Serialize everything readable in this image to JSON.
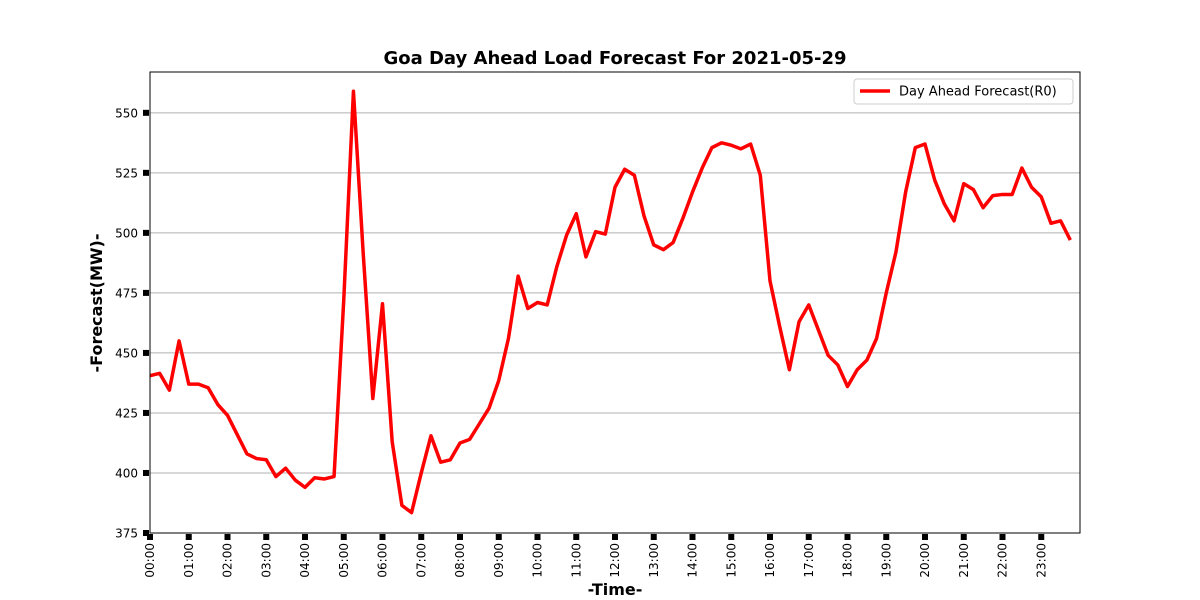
{
  "chart_data": {
    "type": "line",
    "title": "Goa Day Ahead Load Forecast For 2021-05-29",
    "xlabel": "-Time-",
    "ylabel": "-Forecast(MW)-",
    "ylim": [
      375,
      567
    ],
    "yticks": [
      375,
      400,
      425,
      450,
      475,
      500,
      525,
      550
    ],
    "xtick_labels": [
      "00:00",
      "01:00",
      "02:00",
      "03:00",
      "04:00",
      "05:00",
      "06:00",
      "07:00",
      "08:00",
      "09:00",
      "10:00",
      "11:00",
      "12:00",
      "13:00",
      "14:00",
      "15:00",
      "16:00",
      "17:00",
      "18:00",
      "19:00",
      "20:00",
      "21:00",
      "22:00",
      "23:00"
    ],
    "grid": "horizontal",
    "legend_position": "top-right",
    "color": "#ff0000",
    "series": [
      {
        "name": "Day Ahead Forecast(R0)",
        "interval_minutes": 15,
        "values": [
          440.5,
          441.5,
          434.5,
          455.0,
          437.0,
          437.0,
          435.5,
          428.5,
          424.0,
          416.0,
          408.0,
          406.0,
          405.5,
          398.5,
          402.0,
          397.0,
          394.0,
          398.0,
          397.5,
          398.5,
          472.0,
          559.0,
          492.0,
          431.0,
          470.5,
          413.0,
          386.5,
          383.5,
          400.0,
          415.5,
          404.5,
          405.5,
          412.5,
          414.0,
          420.5,
          427.0,
          438.5,
          456.0,
          482.0,
          468.5,
          471.0,
          470.0,
          486.0,
          499.0,
          508.0,
          490.0,
          500.5,
          499.5,
          519.0,
          526.5,
          524.0,
          507.0,
          495.0,
          493.0,
          496.0,
          506.0,
          517.0,
          527.0,
          535.5,
          537.5,
          536.5,
          535.0,
          537.0,
          524.0,
          480.0,
          461.0,
          443.0,
          463.0,
          470.0,
          459.5,
          449.0,
          445.0,
          436.0,
          443.0,
          447.0,
          456.0,
          475.0,
          492.0,
          517.0,
          535.5,
          537.0,
          522.0,
          512.0,
          505.0,
          520.5,
          518.0,
          510.5,
          515.5,
          516.0,
          516.0,
          527.0,
          519.0,
          515.0,
          504.0,
          505.0,
          497.0
        ]
      }
    ]
  }
}
